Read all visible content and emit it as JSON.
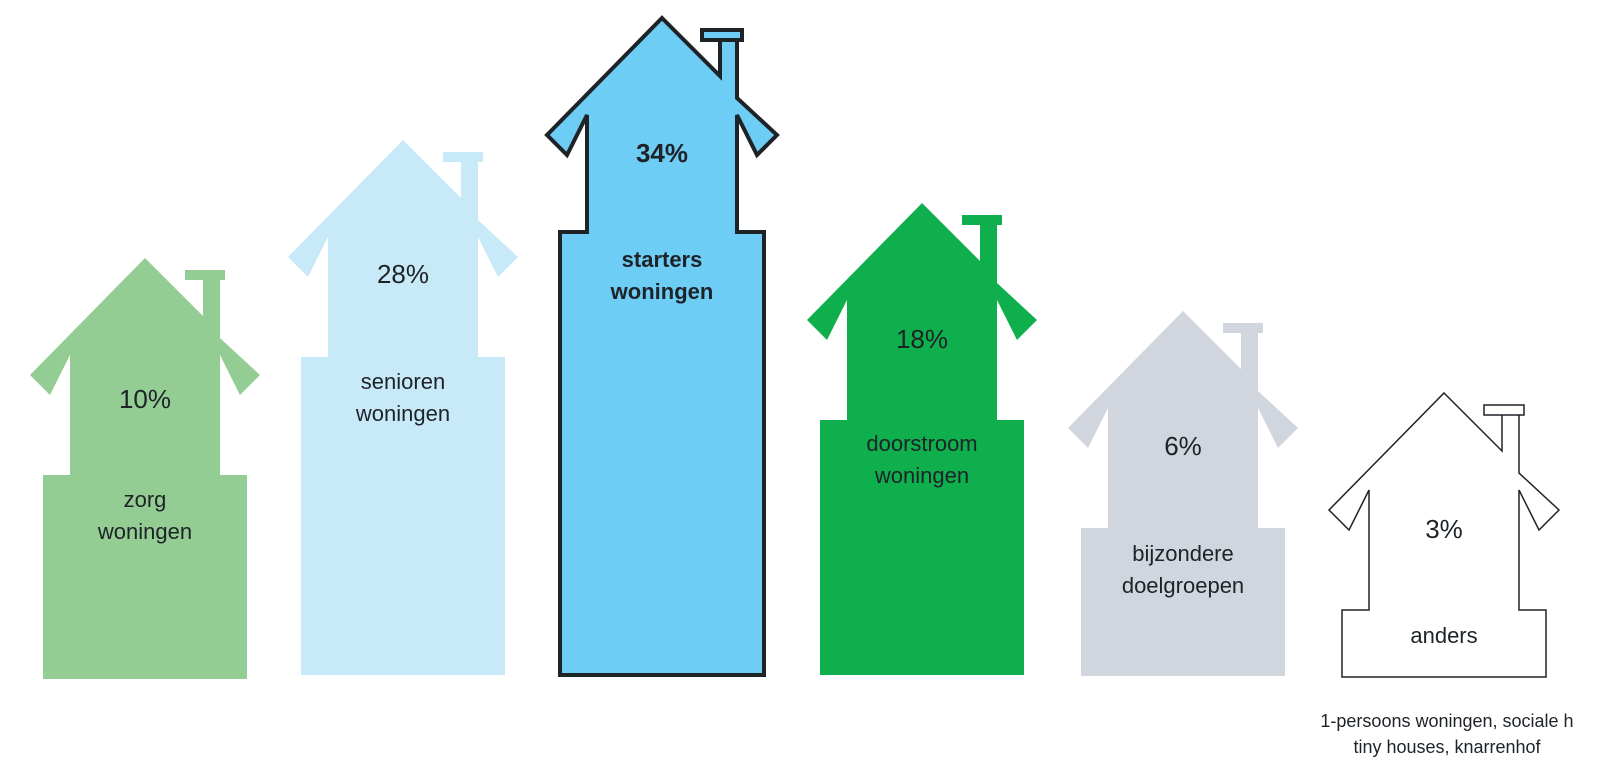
{
  "chart_data": {
    "type": "bar",
    "categories": [
      "zorg woningen",
      "senioren woningen",
      "starters woningen",
      "doorstroom woningen",
      "bijzondere doelgroepen",
      "anders"
    ],
    "values": [
      10,
      28,
      34,
      18,
      6,
      3
    ],
    "unit": "%",
    "houses": [
      {
        "pct": "10%",
        "label": [
          "zorg",
          "woningen"
        ],
        "fill": "#93cd93",
        "highlight": false
      },
      {
        "pct": "28%",
        "label": [
          "senioren",
          "woningen"
        ],
        "fill": "#c8e9f8",
        "highlight": false
      },
      {
        "pct": "34%",
        "label": [
          "starters",
          "woningen"
        ],
        "fill": "#6dcdf4",
        "highlight": true
      },
      {
        "pct": "18%",
        "label": [
          "doorstroom",
          "woningen"
        ],
        "fill": "#0eaf4c",
        "highlight": false
      },
      {
        "pct": "6%",
        "label": [
          "bijzondere",
          "doelgroepen"
        ],
        "fill": "#d1d5de",
        "highlight": false
      },
      {
        "pct": "3%",
        "label": [
          "anders"
        ],
        "fill": "#ffffff",
        "highlight": false,
        "outline": true
      }
    ],
    "footnote": [
      "1-persoons woningen, sociale h",
      "tiny houses, knarrenhof"
    ]
  }
}
